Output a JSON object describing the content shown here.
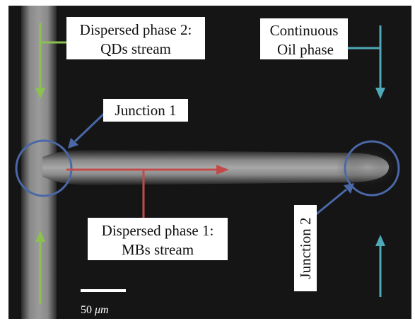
{
  "labels": {
    "dispersed_phase_2_line1": "Dispersed phase 2:",
    "dispersed_phase_2_line2": "QDs stream",
    "continuous_line1": "Continuous",
    "continuous_line2": "Oil phase",
    "junction_1": "Junction 1",
    "dispersed_phase_1_line1": "Dispersed phase 1:",
    "dispersed_phase_1_line2": "MBs stream",
    "junction_2": "Junction 2"
  },
  "scale_bar": {
    "value": "50",
    "unit": "μm"
  },
  "colors": {
    "background": "#151515",
    "channel": "#8e8e8e",
    "green_arrow": "#8cc152",
    "teal_arrow": "#4fa8b8",
    "red_arrow": "#c44a4a",
    "blue_circle": "#4a68a8",
    "label_box": "#ffffff"
  }
}
